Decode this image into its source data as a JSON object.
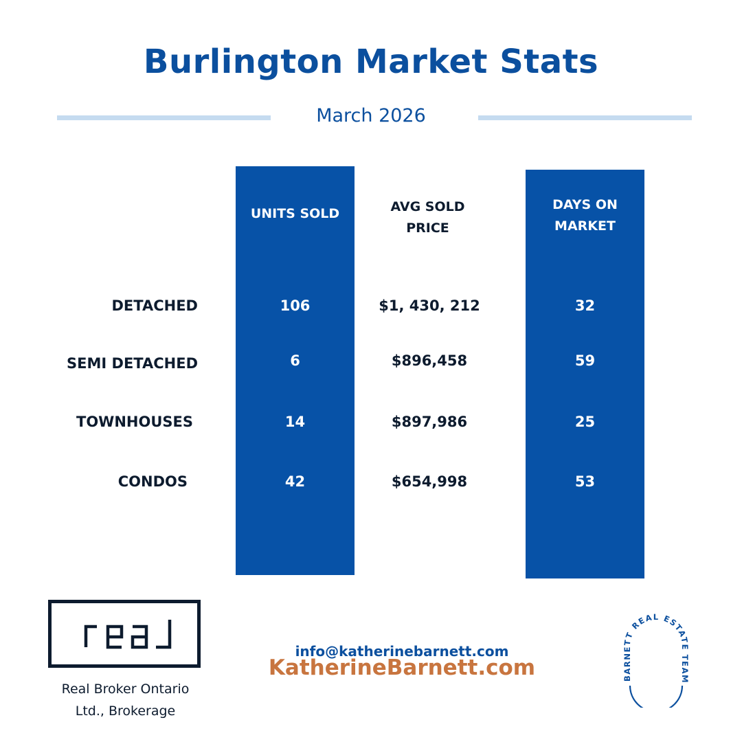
{
  "title": "Burlington Market Stats",
  "subtitle": "March 2026",
  "colors": {
    "brand_blue": "#0752a7",
    "accent_orange": "#c8753f",
    "rule": "#c5dbf0"
  },
  "table": {
    "headers": {
      "units": "UNITS SOLD",
      "avg_line1": "AVG SOLD",
      "avg_line2": "PRICE",
      "dom_line1": "DAYS ON",
      "dom_line2": "MARKET"
    },
    "rows": [
      {
        "label": "DETACHED",
        "units": "106",
        "avg_price": "$1, 430, 212",
        "dom": "32"
      },
      {
        "label": "SEMI DETACHED",
        "units": "6",
        "avg_price": "$896,458",
        "dom": "59"
      },
      {
        "label": "TOWNHOUSES",
        "units": "14",
        "avg_price": "$897,986",
        "dom": "25"
      },
      {
        "label": "CONDOS",
        "units": "42",
        "avg_price": "$654,998",
        "dom": "53"
      }
    ]
  },
  "footer": {
    "logo_text": "real",
    "broker_line1": "Real Broker Ontario",
    "broker_line2": "Ltd., Brokerage",
    "email": "info@katherinebarnett.com",
    "website": "KatherineBarnett.com",
    "badge_text": "BARNETT REAL ESTATE TEAM"
  }
}
